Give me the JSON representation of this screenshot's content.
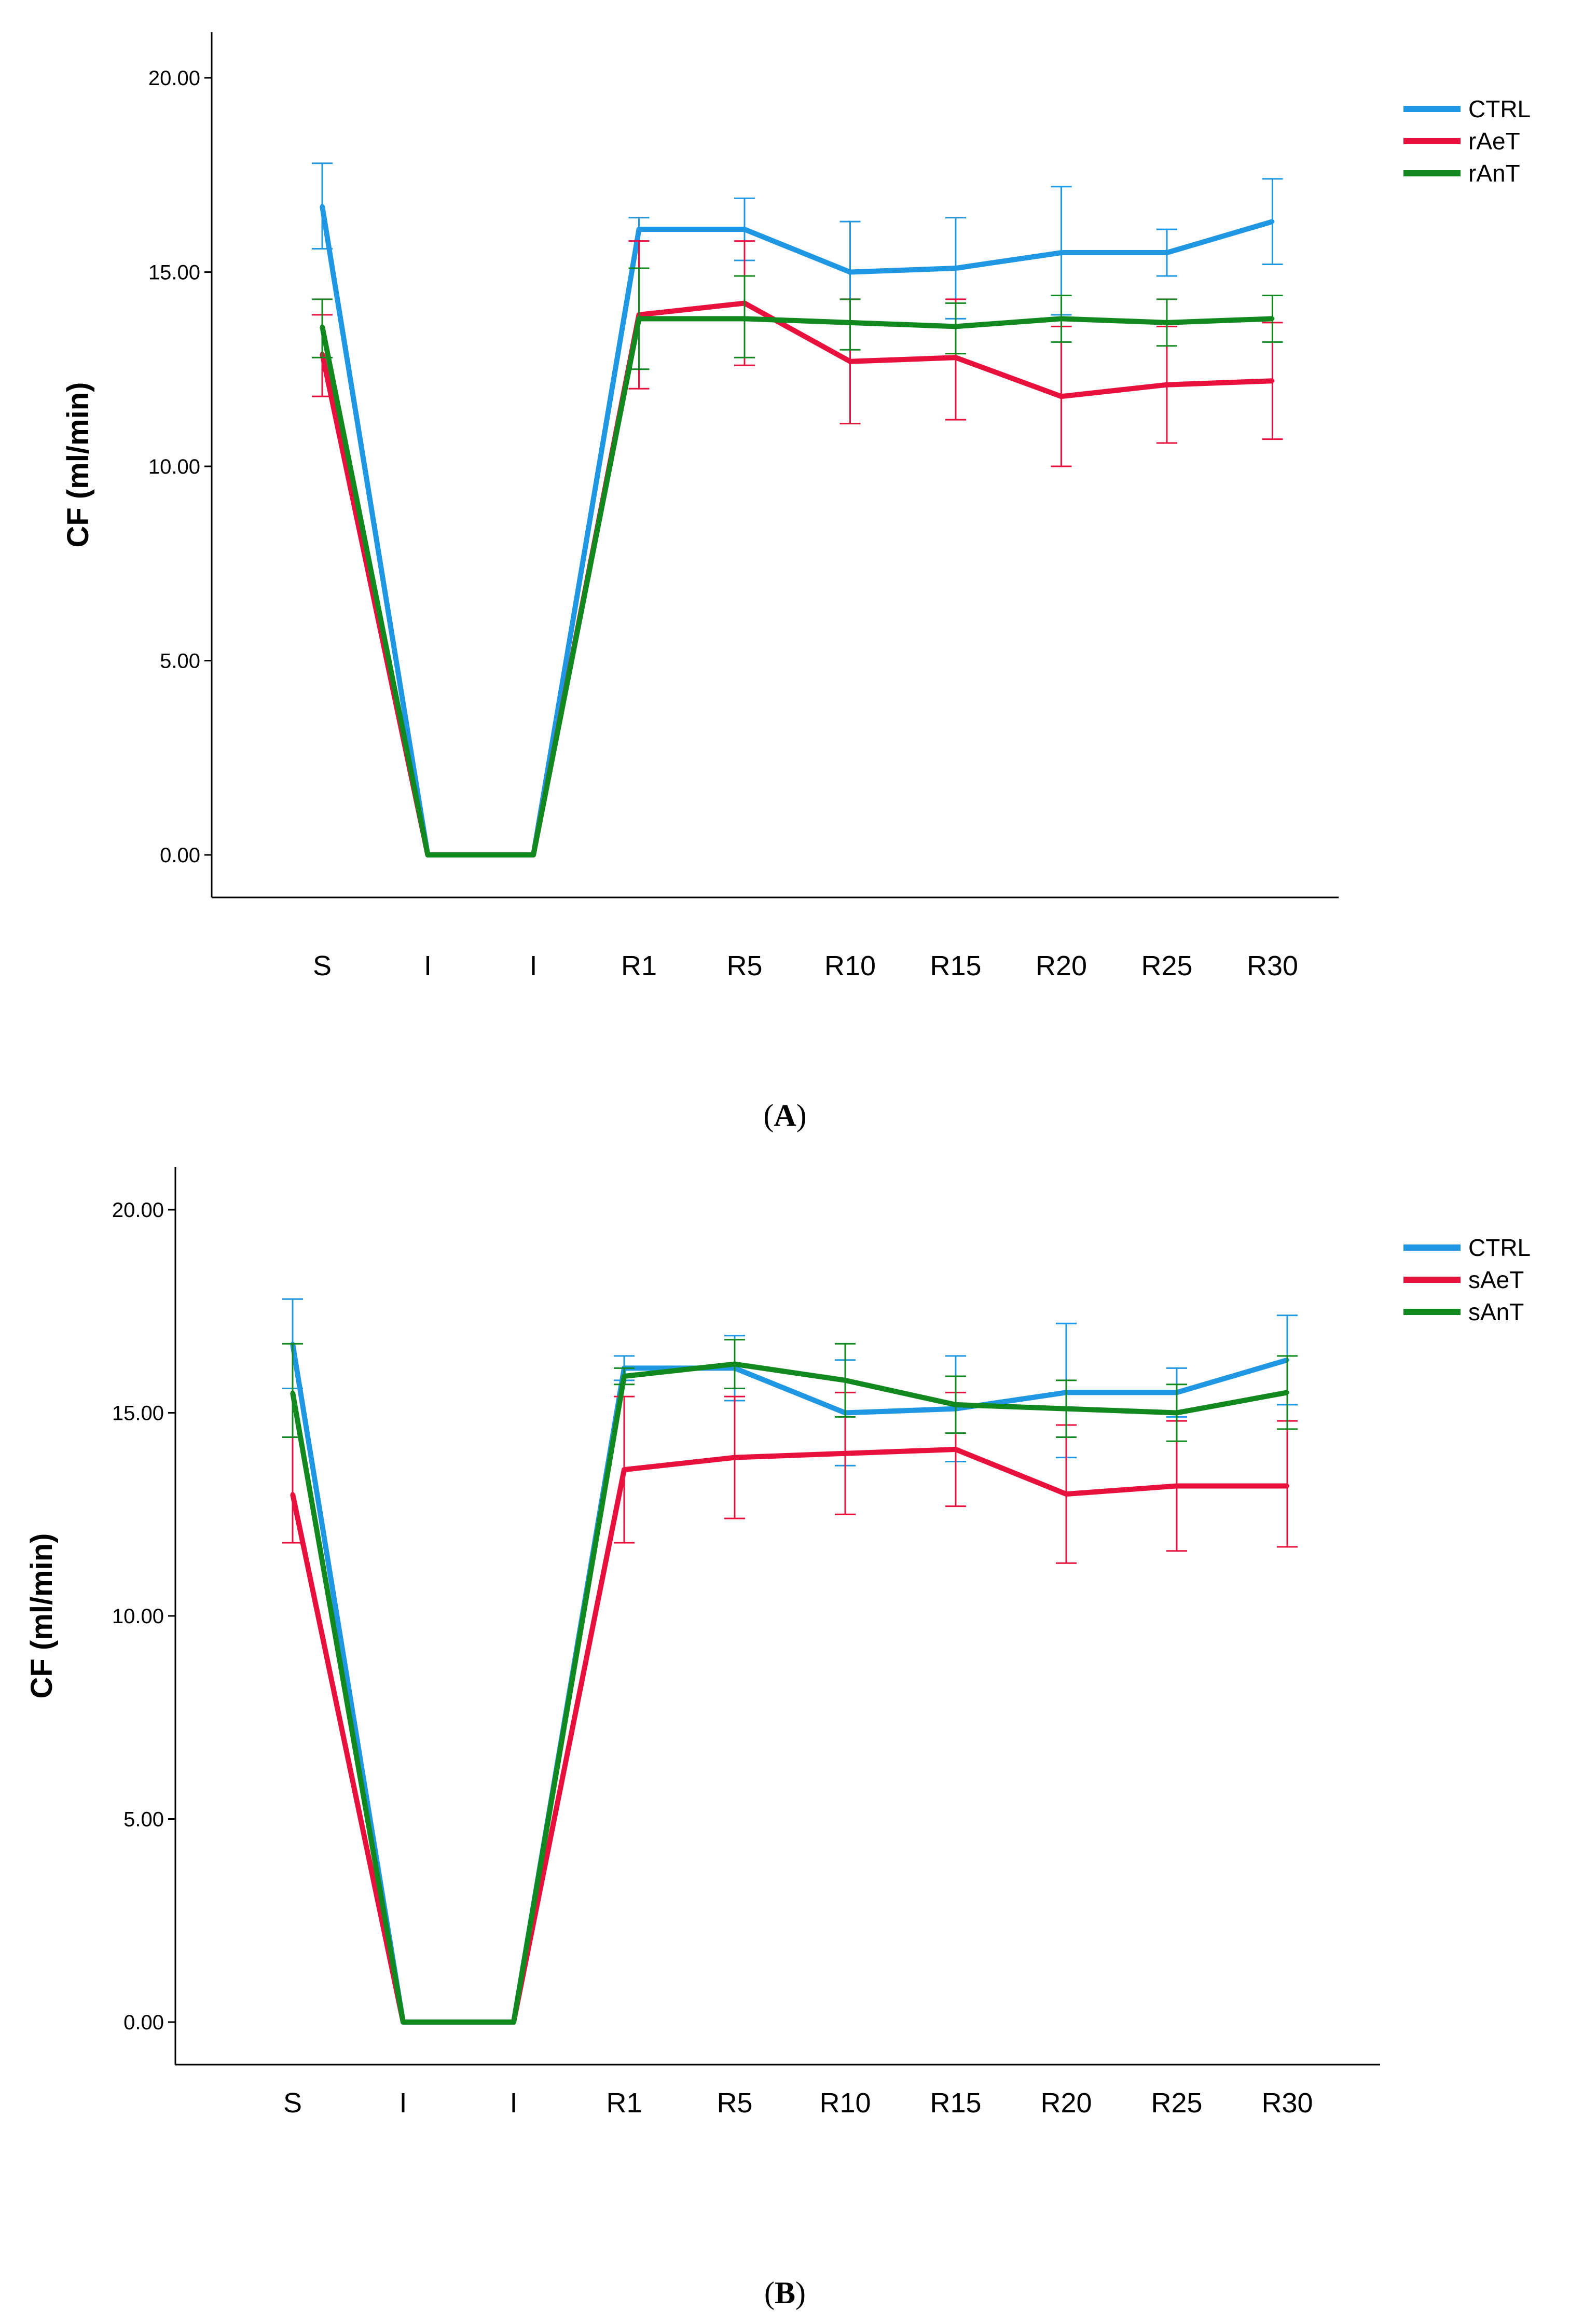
{
  "chart_data": [
    {
      "panel": "A",
      "type": "line",
      "ylabel": "CF (ml/min)",
      "ylim": [
        0,
        20
      ],
      "yticks": [
        "0.00",
        "5.00",
        "10.00",
        "15.00",
        "20.00"
      ],
      "categories": [
        "S",
        "I",
        "I",
        "R1",
        "R5",
        "R10",
        "R15",
        "R20",
        "R25",
        "R30"
      ],
      "legend_position": "top-right",
      "series": [
        {
          "name": "CTRL",
          "color": "#1f97e2",
          "values": [
            16.7,
            0,
            0,
            16.1,
            16.1,
            15.0,
            15.1,
            15.5,
            15.5,
            16.3
          ],
          "lower": [
            15.6,
            0,
            0,
            15.8,
            15.3,
            13.7,
            13.8,
            13.9,
            14.9,
            15.2
          ],
          "upper": [
            17.8,
            0,
            0,
            16.4,
            16.9,
            16.3,
            16.4,
            17.2,
            16.1,
            17.4
          ]
        },
        {
          "name": "rAeT",
          "color": "#e8103d",
          "values": [
            12.9,
            0,
            0,
            13.9,
            14.2,
            12.7,
            12.8,
            11.8,
            12.1,
            12.2
          ],
          "lower": [
            11.8,
            0,
            0,
            12.0,
            12.6,
            11.1,
            11.2,
            10.0,
            10.6,
            10.7
          ],
          "upper": [
            13.9,
            0,
            0,
            15.8,
            15.8,
            14.3,
            14.3,
            13.6,
            13.6,
            13.7
          ]
        },
        {
          "name": "rAnT",
          "color": "#11891f",
          "values": [
            13.6,
            0,
            0,
            13.8,
            13.8,
            13.7,
            13.6,
            13.8,
            13.7,
            13.8
          ],
          "lower": [
            12.8,
            0,
            0,
            12.5,
            12.8,
            13.0,
            12.9,
            13.2,
            13.1,
            13.2
          ],
          "upper": [
            14.3,
            0,
            0,
            15.1,
            14.9,
            14.3,
            14.2,
            14.4,
            14.3,
            14.4
          ]
        }
      ]
    },
    {
      "panel": "B",
      "type": "line",
      "ylabel": "CF (ml/min)",
      "ylim": [
        0,
        20
      ],
      "yticks": [
        "0.00",
        "5.00",
        "10.00",
        "15.00",
        "20.00"
      ],
      "categories": [
        "S",
        "I",
        "I",
        "R1",
        "R5",
        "R10",
        "R15",
        "R20",
        "R25",
        "R30"
      ],
      "legend_position": "top-right",
      "series": [
        {
          "name": "CTRL",
          "color": "#1f97e2",
          "values": [
            16.7,
            0,
            0,
            16.1,
            16.1,
            15.0,
            15.1,
            15.5,
            15.5,
            16.3
          ],
          "lower": [
            15.6,
            0,
            0,
            15.8,
            15.3,
            13.7,
            13.8,
            13.9,
            14.9,
            15.2
          ],
          "upper": [
            17.8,
            0,
            0,
            16.4,
            16.9,
            16.3,
            16.4,
            17.2,
            16.1,
            17.4
          ]
        },
        {
          "name": "sAeT",
          "color": "#e8103d",
          "values": [
            13.0,
            0,
            0,
            13.6,
            13.9,
            14.0,
            14.1,
            13.0,
            13.2,
            13.2
          ],
          "lower": [
            11.8,
            0,
            0,
            11.8,
            12.4,
            12.5,
            12.7,
            11.3,
            11.6,
            11.7
          ],
          "upper": [
            14.4,
            0,
            0,
            15.4,
            15.4,
            15.5,
            15.5,
            14.7,
            14.8,
            14.8
          ]
        },
        {
          "name": "sAnT",
          "color": "#11891f",
          "values": [
            15.5,
            0,
            0,
            15.9,
            16.2,
            15.8,
            15.2,
            15.1,
            15.0,
            15.5
          ],
          "lower": [
            14.4,
            0,
            0,
            15.7,
            15.6,
            14.9,
            14.5,
            14.4,
            14.3,
            14.6
          ],
          "upper": [
            16.7,
            0,
            0,
            16.1,
            16.8,
            16.7,
            15.9,
            15.8,
            15.7,
            16.4
          ]
        }
      ]
    }
  ]
}
